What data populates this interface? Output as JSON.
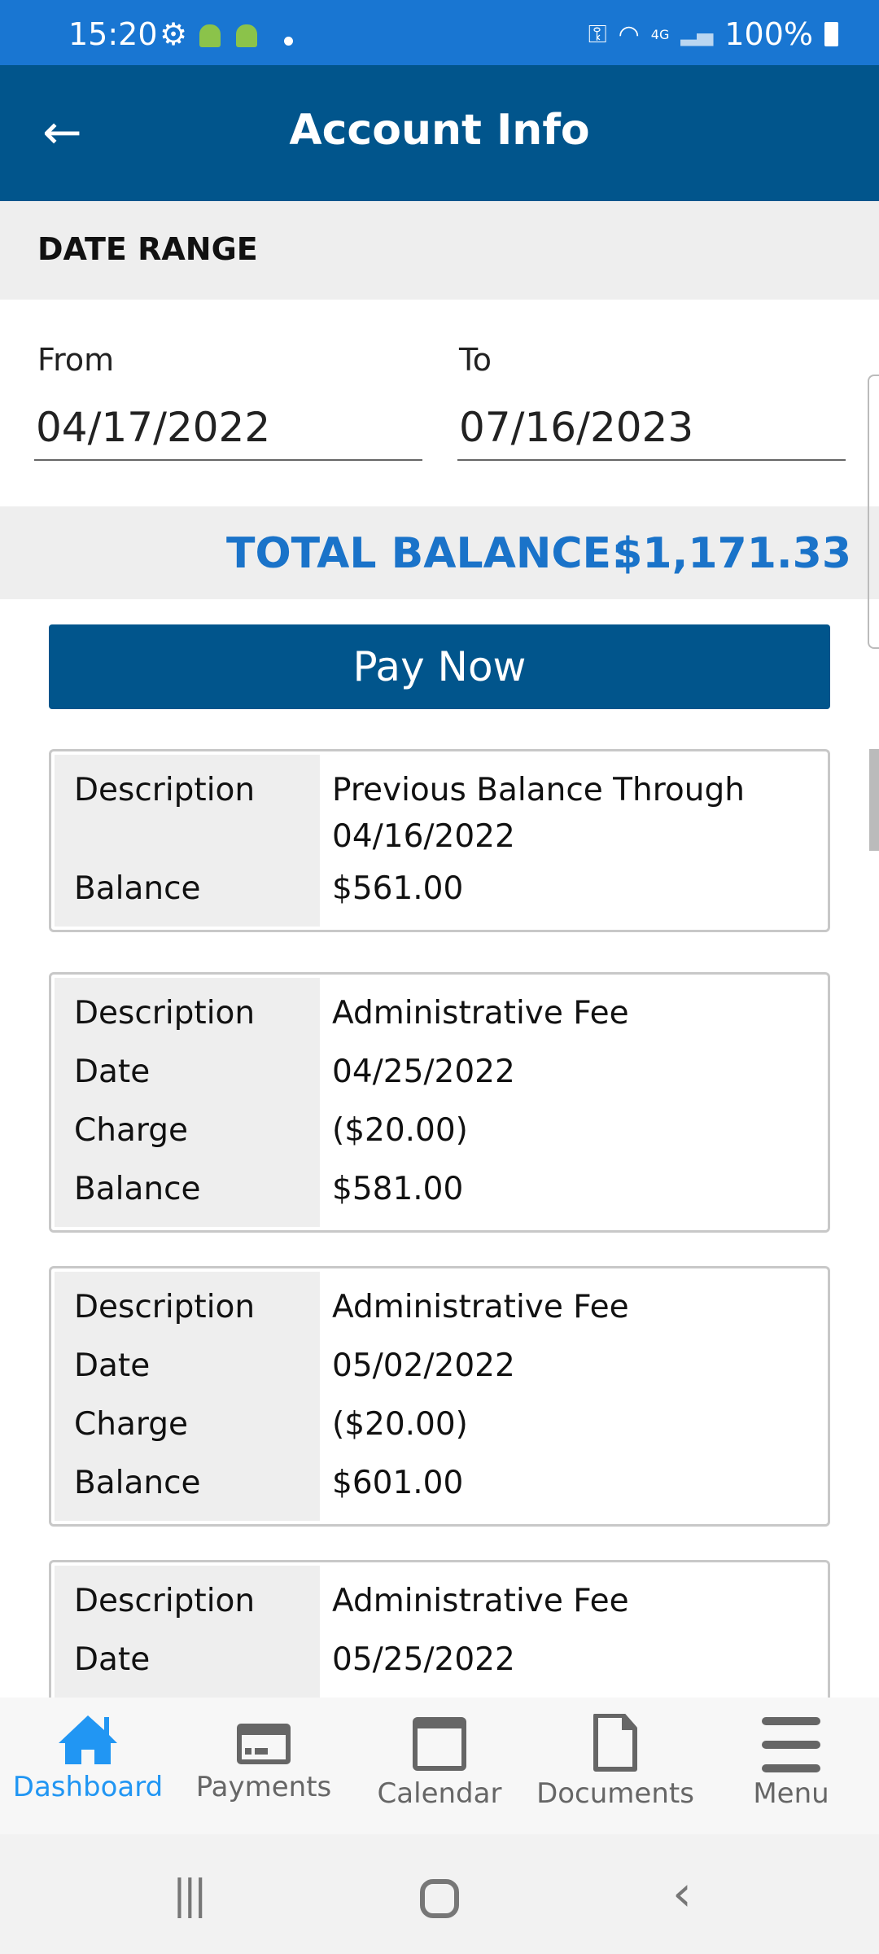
{
  "status_bar": {
    "time": "15:20",
    "battery": "100%",
    "network": "4G"
  },
  "header": {
    "title": "Account Info"
  },
  "date_range": {
    "heading": "DATE RANGE",
    "from_label": "From",
    "from_value": "04/17/2022",
    "to_label": "To",
    "to_value": "07/16/2023"
  },
  "total": {
    "label": "TOTAL BALANCE:",
    "amount": "$1,171.33"
  },
  "pay_now": "Pay Now",
  "transactions": [
    {
      "rows": [
        [
          "Description",
          "Previous Balance Through 04/16/2022"
        ],
        [
          "Balance",
          "$561.00"
        ]
      ]
    },
    {
      "rows": [
        [
          "Description",
          "Administrative Fee"
        ],
        [
          "Date",
          "04/25/2022"
        ],
        [
          "Charge",
          "($20.00)"
        ],
        [
          "Balance",
          "$581.00"
        ]
      ]
    },
    {
      "rows": [
        [
          "Description",
          "Administrative Fee"
        ],
        [
          "Date",
          "05/02/2022"
        ],
        [
          "Charge",
          "($20.00)"
        ],
        [
          "Balance",
          "$601.00"
        ]
      ]
    },
    {
      "rows": [
        [
          "Description",
          "Administrative Fee"
        ],
        [
          "Date",
          "05/25/2022"
        ]
      ]
    }
  ],
  "bottom_nav": [
    {
      "label": "Dashboard",
      "icon": "home-icon",
      "active": true
    },
    {
      "label": "Payments",
      "icon": "card-icon"
    },
    {
      "label": "Calendar",
      "icon": "calendar-icon"
    },
    {
      "label": "Documents",
      "icon": "document-icon"
    },
    {
      "label": "Menu",
      "icon": "menu-icon"
    }
  ],
  "colors": {
    "status": "#1976d2",
    "header": "#01558c",
    "accent": "#1a73c9",
    "active_nav": "#2196f3"
  }
}
